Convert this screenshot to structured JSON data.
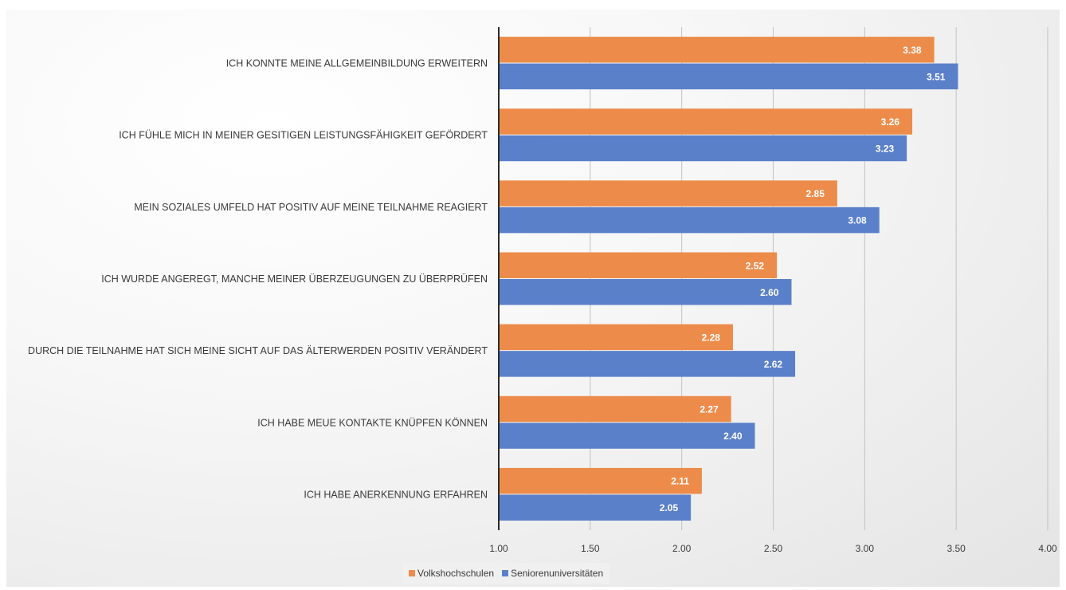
{
  "chart_data": {
    "type": "bar",
    "orientation": "horizontal",
    "categories": [
      "ICH KONNTE MEINE ALLGEMEINBILDUNG ERWEITERN",
      "ICH FÜHLE MICH IN MEINER GESITIGEN LEISTUNGSFÄHIGKEIT GEFÖRDERT",
      "MEIN SOZIALES UMFELD HAT POSITIV AUF MEINE TEILNAHME REAGIERT",
      "ICH WURDE ANGEREGT, MANCHE MEINER ÜBERZEUGUNGEN ZU ÜBERPRÜFEN",
      "DURCH DIE TEILNAHME HAT SICH MEINE SICHT AUF DAS ÄLTERWERDEN POSITIV VERÄNDERT",
      "ICH HABE MEUE KONTAKTE KNÜPFEN KÖNNEN",
      "ICH HABE ANERKENNUNG ERFAHREN"
    ],
    "series": [
      {
        "name": "Volkshochschulen",
        "color": "#ED8C4A",
        "values": [
          3.38,
          3.26,
          2.85,
          2.52,
          2.28,
          2.27,
          2.11
        ],
        "labels": [
          "3.38",
          "3.26",
          "2.85",
          "2.52",
          "2.28",
          "2.27",
          "2.11"
        ]
      },
      {
        "name": "Seniorenuniversitäten",
        "color": "#5B80CA",
        "values": [
          3.51,
          3.23,
          3.08,
          2.6,
          2.62,
          2.4,
          2.05
        ],
        "labels": [
          "3.51",
          "3.23",
          "3.08",
          "2.60",
          "2.62",
          "2.40",
          "2.05"
        ]
      }
    ],
    "xlim": [
      1.0,
      4.0
    ],
    "x_ticks": [
      "1.00",
      "1.50",
      "2.00",
      "2.50",
      "3.00",
      "3.50",
      "4.00"
    ],
    "grid": true,
    "legend_position": "bottom"
  }
}
